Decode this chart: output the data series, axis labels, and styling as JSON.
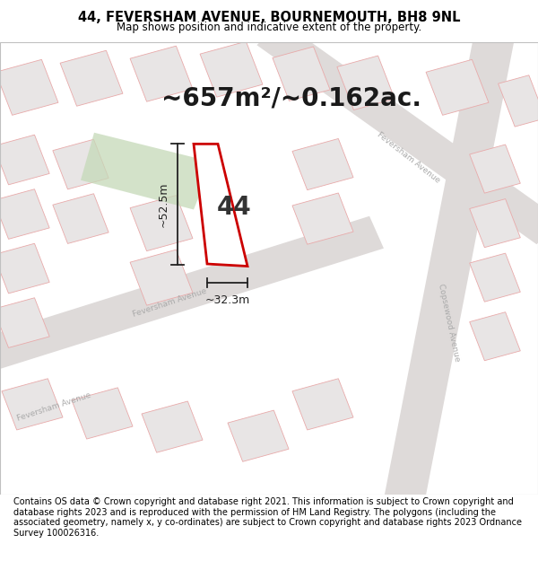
{
  "title": "44, FEVERSHAM AVENUE, BOURNEMOUTH, BH8 9NL",
  "subtitle": "Map shows position and indicative extent of the property.",
  "area_text": "~657m²/~0.162ac.",
  "number_label": "44",
  "dim_width": "~32.3m",
  "dim_height": "~52.5m",
  "footer": "Contains OS data © Crown copyright and database right 2021. This information is subject to Crown copyright and database rights 2023 and is reproduced with the permission of HM Land Registry. The polygons (including the associated geometry, namely x, y co-ordinates) are subject to Crown copyright and database rights 2023 Ordnance Survey 100026316.",
  "map_bg": "#f2f0f0",
  "header_bg": "#ffffff",
  "footer_bg": "#ffffff",
  "title_fontsize": 10.5,
  "subtitle_fontsize": 8.5,
  "area_fontsize": 20,
  "number_fontsize": 20,
  "dim_fontsize": 9,
  "footer_fontsize": 7,
  "plot_edge": "#cc0000",
  "plot_fill": "#ffffff",
  "green_fill": "#c5d9b8",
  "building_fill": "#e8e5e5",
  "road_fill": "#dedad9",
  "light_red": "#e8aaaa",
  "street_label_color": "#aaaaaa",
  "dim_line_color": "#222222"
}
